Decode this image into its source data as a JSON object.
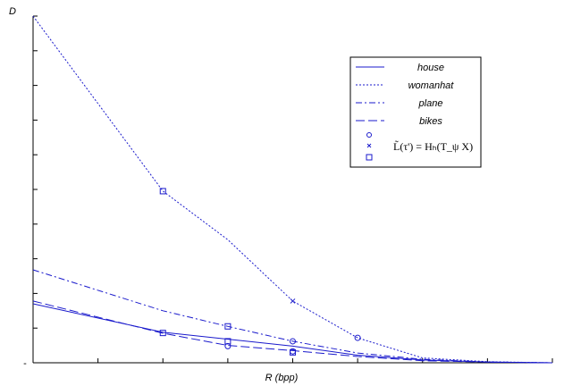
{
  "chart_data": {
    "type": "line",
    "title": "",
    "xlabel": "R (bpp)",
    "ylabel": "D",
    "yticklabels": [
      "-"
    ],
    "xlim": [
      0,
      4
    ],
    "ylim": [
      0,
      1
    ],
    "x": [
      0,
      1,
      1.5,
      2,
      2.5,
      3,
      3.5,
      4
    ],
    "series": [
      {
        "name": "house",
        "style": "solid",
        "values": [
          0.17,
          0.088,
          0.068,
          0.048,
          0.022,
          0.008,
          0.002,
          0.0
        ]
      },
      {
        "name": "womanhat",
        "style": "dotted",
        "values": [
          1.0,
          0.495,
          0.355,
          0.178,
          0.072,
          0.014,
          0.003,
          0.0
        ]
      },
      {
        "name": "plane",
        "style": "dashdot",
        "values": [
          0.268,
          0.15,
          0.105,
          0.062,
          0.028,
          0.01,
          0.002,
          0.0
        ]
      },
      {
        "name": "bikes",
        "style": "dashed",
        "values": [
          0.178,
          0.085,
          0.05,
          0.035,
          0.018,
          0.006,
          0.002,
          0.0
        ]
      }
    ],
    "markers": [
      {
        "symbol": "square",
        "x": 1,
        "y": 0.495
      },
      {
        "symbol": "square",
        "x": 1,
        "y": 0.086
      },
      {
        "symbol": "square",
        "x": 1.5,
        "y": 0.105
      },
      {
        "symbol": "square",
        "x": 1.5,
        "y": 0.062
      },
      {
        "symbol": "circle",
        "x": 1.5,
        "y": 0.048
      },
      {
        "symbol": "circle",
        "x": 2,
        "y": 0.062
      },
      {
        "symbol": "circle",
        "x": 2,
        "y": 0.033
      },
      {
        "symbol": "square",
        "x": 2,
        "y": 0.03
      },
      {
        "symbol": "circle",
        "x": 2.5,
        "y": 0.072
      },
      {
        "symbol": "cross",
        "x": 2,
        "y": 0.178
      }
    ],
    "legend": {
      "placement": "top-right",
      "entries": [
        "house",
        "womanhat",
        "plane",
        "bikes"
      ],
      "formula": "L̃(τ') = Hₕ(T_ψ X)"
    },
    "grid": false,
    "colors": {
      "series": "#1a1acc",
      "axis": "#000000"
    }
  }
}
